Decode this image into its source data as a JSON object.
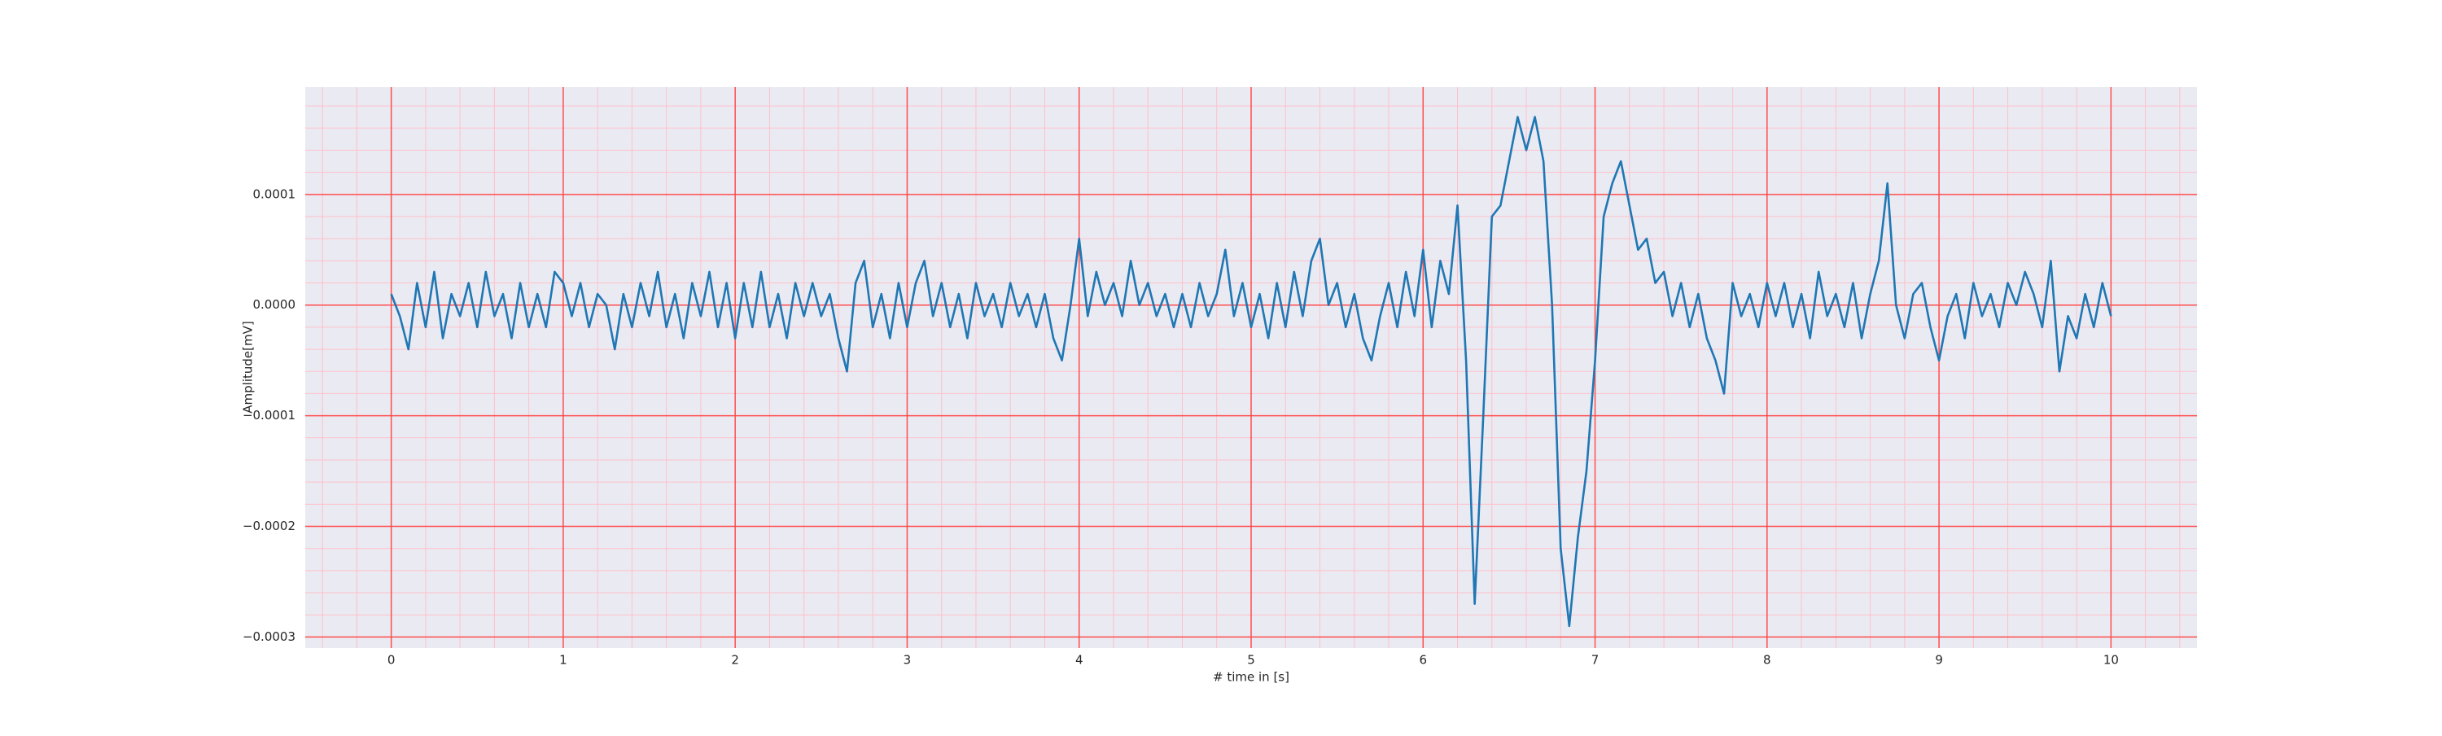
{
  "chart_data": {
    "type": "line",
    "xlabel": "# time in [s]",
    "ylabel": "Amplitude[mV]",
    "color": "#1f77b4",
    "grid": true,
    "grid_color": "#ff4d4d",
    "minor_grid_color": "#ffc0cb",
    "xlim": [
      -0.5,
      10.5
    ],
    "ylim": [
      -0.00031,
      0.000197
    ],
    "xticks": [
      0,
      1,
      2,
      3,
      4,
      5,
      6,
      7,
      8,
      9,
      10
    ],
    "yticks": [
      {
        "value": -0.0003,
        "label": "−0.0003"
      },
      {
        "value": -0.0002,
        "label": "−0.0002"
      },
      {
        "value": -0.0001,
        "label": "−0.0001"
      },
      {
        "value": 0,
        "label": "0.0000"
      },
      0.0001
    ],
    "minor_xticks": [
      -0.4,
      -0.2,
      0.2,
      0.4,
      0.6,
      0.8,
      1.2,
      1.4,
      1.6,
      1.8,
      2.2,
      2.4,
      2.6,
      2.8,
      3.2,
      3.4,
      3.6,
      3.8,
      4.2,
      4.4,
      4.6,
      4.8,
      5.2,
      5.4,
      5.6,
      5.8,
      6.2,
      6.4,
      6.6,
      6.8,
      7.2,
      7.4,
      7.6,
      7.8,
      8.2,
      8.4,
      8.6,
      8.8,
      9.2,
      9.4,
      9.6,
      9.8,
      10.2,
      10.4
    ],
    "minor_yticks": [
      -0.00028,
      -0.00026,
      -0.00024,
      -0.00022,
      -0.00018,
      -0.00016,
      -0.00014,
      -0.00012,
      -8e-05,
      -6e-05,
      -4e-05,
      -2e-05,
      2e-05,
      4e-05,
      6e-05,
      8e-05,
      0.00012,
      0.00014,
      0.00016,
      0.00018
    ],
    "x": [
      0,
      0.05,
      0.1,
      0.15,
      0.2,
      0.25,
      0.3,
      0.35,
      0.4,
      0.45,
      0.5,
      0.55,
      0.6,
      0.65,
      0.7,
      0.75,
      0.8,
      0.85,
      0.9,
      0.95,
      1,
      1.05,
      1.1,
      1.15,
      1.2,
      1.25,
      1.3,
      1.35,
      1.4,
      1.45,
      1.5,
      1.55,
      1.6,
      1.65,
      1.7,
      1.75,
      1.8,
      1.85,
      1.9,
      1.95,
      2,
      2.05,
      2.1,
      2.15,
      2.2,
      2.25,
      2.3,
      2.35,
      2.4,
      2.45,
      2.5,
      2.55,
      2.6,
      2.65,
      2.7,
      2.75,
      2.8,
      2.85,
      2.9,
      2.95,
      3,
      3.05,
      3.1,
      3.15,
      3.2,
      3.25,
      3.3,
      3.35,
      3.4,
      3.45,
      3.5,
      3.55,
      3.6,
      3.65,
      3.7,
      3.75,
      3.8,
      3.85,
      3.9,
      3.95,
      4,
      4.05,
      4.1,
      4.15,
      4.2,
      4.25,
      4.3,
      4.35,
      4.4,
      4.45,
      4.5,
      4.55,
      4.6,
      4.65,
      4.7,
      4.75,
      4.8,
      4.85,
      4.9,
      4.95,
      5,
      5.05,
      5.1,
      5.15,
      5.2,
      5.25,
      5.3,
      5.35,
      5.4,
      5.45,
      5.5,
      5.55,
      5.6,
      5.65,
      5.7,
      5.75,
      5.8,
      5.85,
      5.9,
      5.95,
      6,
      6.05,
      6.1,
      6.15,
      6.2,
      6.25,
      6.3,
      6.35,
      6.4,
      6.45,
      6.5,
      6.55,
      6.6,
      6.65,
      6.7,
      6.75,
      6.8,
      6.85,
      6.9,
      6.95,
      7,
      7.05,
      7.1,
      7.15,
      7.2,
      7.25,
      7.3,
      7.35,
      7.4,
      7.45,
      7.5,
      7.55,
      7.6,
      7.65,
      7.7,
      7.75,
      7.8,
      7.85,
      7.9,
      7.95,
      8,
      8.05,
      8.1,
      8.15,
      8.2,
      8.25,
      8.3,
      8.35,
      8.4,
      8.45,
      8.5,
      8.55,
      8.6,
      8.65,
      8.7,
      8.75,
      8.8,
      8.85,
      8.9,
      8.95,
      9,
      9.05,
      9.1,
      9.15,
      9.2,
      9.25,
      9.3,
      9.35,
      9.4,
      9.45,
      9.5,
      9.55,
      9.6,
      9.65,
      9.7,
      9.75,
      9.8,
      9.85,
      9.9,
      9.95,
      10
    ],
    "values": [
      1e-05,
      -1e-05,
      -4e-05,
      2e-05,
      -2e-05,
      3e-05,
      -3e-05,
      1e-05,
      -1e-05,
      2e-05,
      -2e-05,
      3e-05,
      -1e-05,
      1e-05,
      -3e-05,
      2e-05,
      -2e-05,
      1e-05,
      -2e-05,
      3e-05,
      2e-05,
      -1e-05,
      2e-05,
      -2e-05,
      1e-05,
      0,
      -4e-05,
      1e-05,
      -2e-05,
      2e-05,
      -1e-05,
      3e-05,
      -2e-05,
      1e-05,
      -3e-05,
      2e-05,
      -1e-05,
      3e-05,
      -2e-05,
      2e-05,
      -3e-05,
      2e-05,
      -2e-05,
      3e-05,
      -2e-05,
      1e-05,
      -3e-05,
      2e-05,
      -1e-05,
      2e-05,
      -1e-05,
      1e-05,
      -3e-05,
      -6e-05,
      2e-05,
      4e-05,
      -2e-05,
      1e-05,
      -3e-05,
      2e-05,
      -2e-05,
      2e-05,
      4e-05,
      -1e-05,
      2e-05,
      -2e-05,
      1e-05,
      -3e-05,
      2e-05,
      -1e-05,
      1e-05,
      -2e-05,
      2e-05,
      -1e-05,
      1e-05,
      -2e-05,
      1e-05,
      -3e-05,
      -5e-05,
      0,
      6e-05,
      -1e-05,
      3e-05,
      0,
      2e-05,
      -1e-05,
      4e-05,
      0,
      2e-05,
      -1e-05,
      1e-05,
      -2e-05,
      1e-05,
      -2e-05,
      2e-05,
      -1e-05,
      1e-05,
      5e-05,
      -1e-05,
      2e-05,
      -2e-05,
      1e-05,
      -3e-05,
      2e-05,
      -2e-05,
      3e-05,
      -1e-05,
      4e-05,
      6e-05,
      0,
      2e-05,
      -2e-05,
      1e-05,
      -3e-05,
      -5e-05,
      -1e-05,
      2e-05,
      -2e-05,
      3e-05,
      -1e-05,
      5e-05,
      -2e-05,
      4e-05,
      1e-05,
      9e-05,
      -5e-05,
      -0.00027,
      -0.0001,
      8e-05,
      9e-05,
      0.00013,
      0.00017,
      0.00014,
      0.00017,
      0.00013,
      0,
      -0.00022,
      -0.00029,
      -0.00021,
      -0.00015,
      -5e-05,
      8e-05,
      0.00011,
      0.00013,
      9e-05,
      5e-05,
      6e-05,
      2e-05,
      3e-05,
      -1e-05,
      2e-05,
      -2e-05,
      1e-05,
      -3e-05,
      -5e-05,
      -8e-05,
      2e-05,
      -1e-05,
      1e-05,
      -2e-05,
      2e-05,
      -1e-05,
      2e-05,
      -2e-05,
      1e-05,
      -3e-05,
      3e-05,
      -1e-05,
      1e-05,
      -2e-05,
      2e-05,
      -3e-05,
      1e-05,
      4e-05,
      0.00011,
      0,
      -3e-05,
      1e-05,
      2e-05,
      -2e-05,
      -5e-05,
      -1e-05,
      1e-05,
      -3e-05,
      2e-05,
      -1e-05,
      1e-05,
      -2e-05,
      2e-05,
      0,
      3e-05,
      1e-05,
      -2e-05,
      4e-05,
      -6e-05,
      -1e-05,
      -3e-05,
      1e-05,
      -2e-05,
      2e-05,
      -1e-05
    ]
  }
}
